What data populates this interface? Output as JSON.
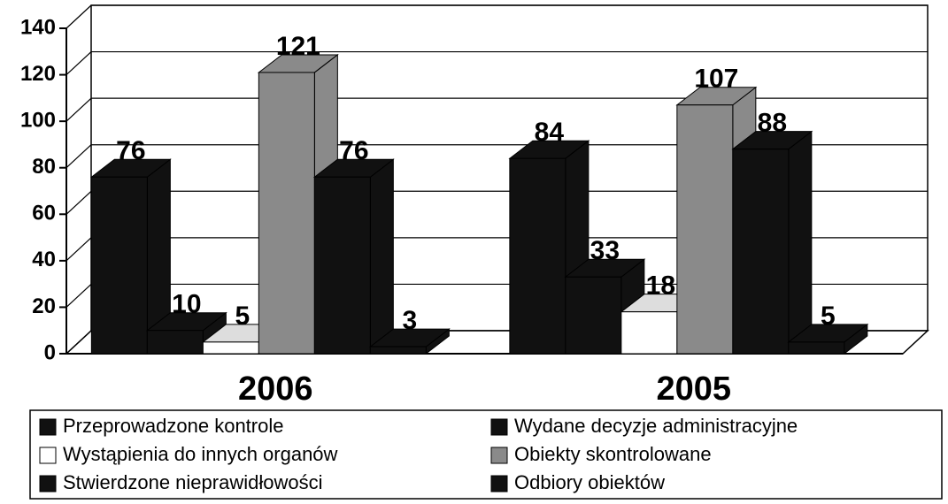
{
  "chart_data": {
    "type": "bar3d",
    "categories": [
      "2006",
      "2005"
    ],
    "series": [
      {
        "name": "Przeprowadzone kontrole",
        "color": "#111111",
        "values": [
          76,
          84
        ]
      },
      {
        "name": "Wydane decyzje administracyjne",
        "color": "#111111",
        "values": [
          10,
          33
        ]
      },
      {
        "name": "Wystąpienia do innych organów",
        "color": "#ffffff",
        "values": [
          5,
          18
        ]
      },
      {
        "name": "Obiekty skontrolowane",
        "color": "#8a8a8a",
        "values": [
          121,
          107
        ]
      },
      {
        "name": "Stwierdzone nieprawidłowości",
        "color": "#111111",
        "values": [
          76,
          88
        ]
      },
      {
        "name": "Odbiory obiektów",
        "color": "#111111",
        "values": [
          3,
          5
        ]
      }
    ],
    "ylim": [
      0,
      140
    ],
    "yticks": [
      0,
      20,
      40,
      60,
      80,
      100,
      120,
      140
    ],
    "grid": true,
    "legend": "bottom"
  }
}
